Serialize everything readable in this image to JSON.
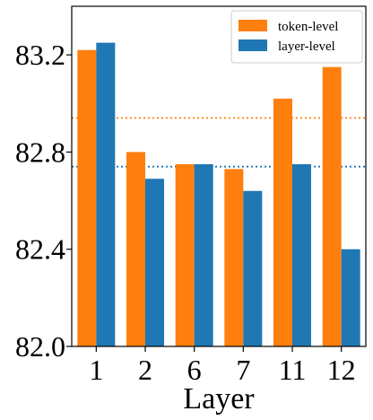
{
  "chart_data": {
    "type": "bar",
    "title": "",
    "xlabel": "Layer",
    "ylabel": "",
    "categories": [
      "1",
      "2",
      "6",
      "7",
      "11",
      "12"
    ],
    "series": [
      {
        "name": "token-level",
        "color": "#ff7f0e",
        "values": [
          83.22,
          82.8,
          82.75,
          82.73,
          83.02,
          83.15
        ]
      },
      {
        "name": "layer-level",
        "color": "#1f77b4",
        "values": [
          83.25,
          82.69,
          82.75,
          82.64,
          82.75,
          82.4
        ]
      }
    ],
    "reference_lines": [
      {
        "series": "token-level",
        "value": 82.94,
        "style": "dotted",
        "color": "#ff7f0e"
      },
      {
        "series": "layer-level",
        "value": 82.74,
        "style": "dotted",
        "color": "#1f77b4"
      }
    ],
    "ylim": [
      82.0,
      83.4
    ],
    "yticks": [
      "82.0",
      "82.4",
      "82.8",
      "83.2"
    ],
    "legend": "top-right",
    "grid": false
  }
}
